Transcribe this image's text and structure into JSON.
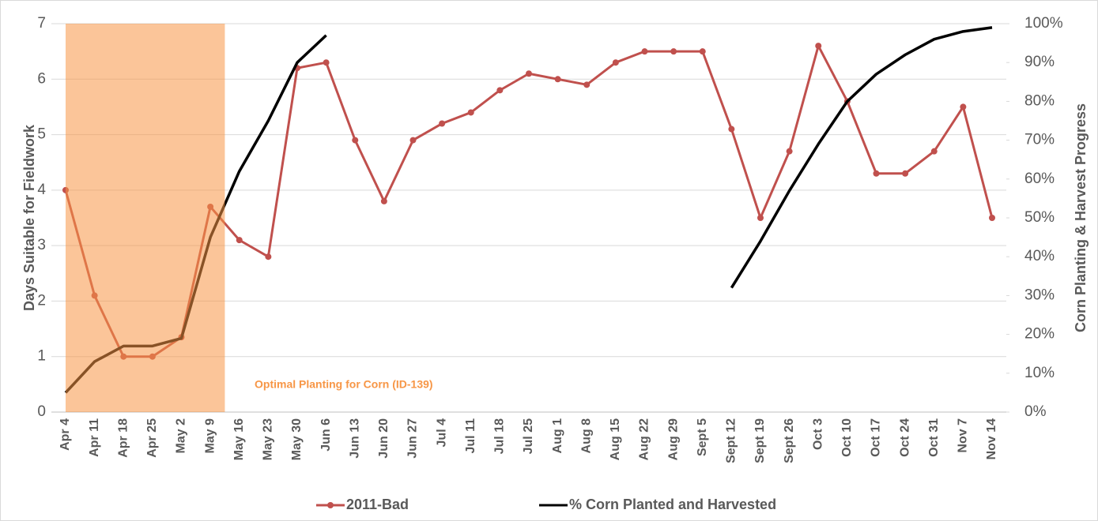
{
  "chart_data": {
    "type": "line",
    "categories": [
      "Apr 4",
      "Apr 11",
      "Apr 18",
      "Apr 25",
      "May 2",
      "May 9",
      "May 16",
      "May 23",
      "May 30",
      "Jun 6",
      "Jun 13",
      "Jun 20",
      "Jun 27",
      "Jul 4",
      "Jul 11",
      "Jul 18",
      "Jul 25",
      "Aug 1",
      "Aug 8",
      "Aug 15",
      "Aug 22",
      "Aug 29",
      "Sept 5",
      "Sept 12",
      "Sept 19",
      "Sept 26",
      "Oct 3",
      "Oct 10",
      "Oct 17",
      "Oct 24",
      "Oct 31",
      "Nov 7",
      "Nov 14"
    ],
    "series": [
      {
        "name": "2011-Bad",
        "color": "#c0504d",
        "markers": true,
        "values": [
          4.0,
          2.1,
          1.0,
          1.0,
          1.35,
          3.7,
          3.1,
          2.8,
          6.2,
          6.3,
          4.9,
          3.8,
          4.9,
          5.2,
          5.4,
          5.8,
          6.1,
          6.0,
          5.9,
          6.3,
          6.5,
          6.5,
          6.5,
          5.1,
          3.5,
          4.7,
          6.6,
          5.6,
          4.3,
          4.3,
          4.7,
          5.5,
          3.5
        ]
      },
      {
        "name": "% Corn Planted and Harvested",
        "color": "#000000",
        "axis": "y2",
        "markers": false,
        "values": [
          5,
          13,
          17,
          17,
          19,
          45,
          62,
          75,
          90,
          97,
          null,
          null,
          null,
          null,
          null,
          null,
          null,
          null,
          null,
          null,
          null,
          null,
          null,
          32,
          44,
          57,
          69,
          80,
          87,
          92,
          96,
          98,
          99
        ]
      }
    ],
    "y_label": "Days Suitable for Fieldwork",
    "y2_label": "Corn Planting & Harvest Progress",
    "annotation": "Optimal Planting for Corn (ID-139)",
    "ylim": [
      0,
      7
    ],
    "yticks": [
      0,
      1,
      2,
      3,
      4,
      5,
      6,
      7
    ],
    "y2lim": [
      0,
      100
    ],
    "y2ticks": [
      {
        "value": 0,
        "label": "0%"
      },
      {
        "value": 10,
        "label": "10%"
      },
      {
        "value": 20,
        "label": "20%"
      },
      {
        "value": 30,
        "label": "30%"
      },
      {
        "value": 40,
        "label": "40%"
      },
      {
        "value": 50,
        "label": "50%"
      },
      {
        "value": 60,
        "label": "60%"
      },
      {
        "value": 70,
        "label": "70%"
      },
      {
        "value": 80,
        "label": "80%"
      },
      {
        "value": 90,
        "label": "90%"
      },
      {
        "value": 100,
        "label": "100%"
      }
    ],
    "grid": true,
    "legend": "bottom"
  }
}
